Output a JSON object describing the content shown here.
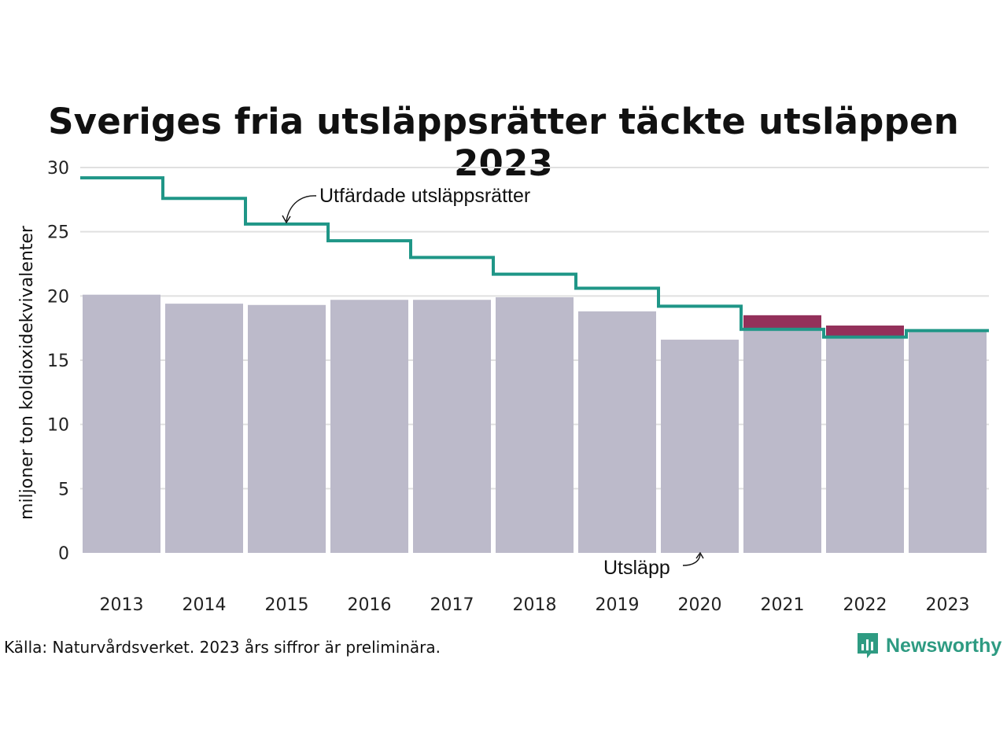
{
  "title": "Sveriges fria utsläppsrätter täckte utsläppen 2023",
  "source": "Källa: Naturvårdsverket. 2023 års siffror är preliminära.",
  "logo_text": "Newsworthy",
  "colors": {
    "emissions": "#bcbaca",
    "allowances": "#1f9687",
    "excess": "#93305a",
    "grid": "#e0e0e0"
  },
  "chart_data": {
    "type": "bar",
    "title": "Sveriges fria utsläppsrätter täckte utsläppen 2023",
    "ylabel": "miljoner ton koldioxidekvivalenter",
    "ylim": [
      0,
      30
    ],
    "yticks": [
      0,
      5,
      10,
      15,
      20,
      25,
      30
    ],
    "grid": true,
    "categories": [
      "2013",
      "2014",
      "2015",
      "2016",
      "2017",
      "2018",
      "2019",
      "2020",
      "2021",
      "2022",
      "2023"
    ],
    "series": [
      {
        "name": "Utsläpp",
        "type": "bar",
        "values": [
          20.1,
          19.4,
          19.3,
          19.7,
          19.7,
          19.9,
          18.8,
          16.6,
          18.5,
          17.7,
          17.3
        ]
      },
      {
        "name": "Utfärdade utsläppsrätter",
        "type": "step-line",
        "values": [
          29.2,
          27.6,
          25.6,
          24.3,
          23.0,
          21.7,
          20.6,
          19.2,
          17.4,
          16.8,
          17.3
        ]
      }
    ],
    "annotations": {
      "allowances_label": "Utfärdade utsläppsrätter",
      "emissions_label": "Utsläpp"
    }
  }
}
